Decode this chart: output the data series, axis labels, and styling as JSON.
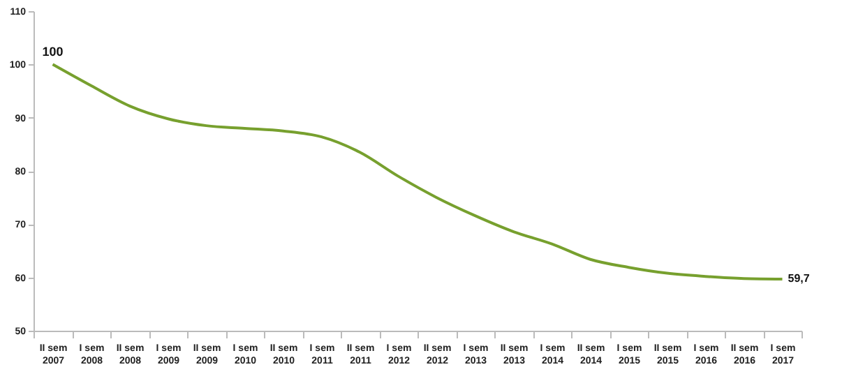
{
  "chart_data": {
    "type": "line",
    "categories": [
      "II sem 2007",
      "I sem 2008",
      "II sem 2008",
      "I sem 2009",
      "II sem 2009",
      "I sem 2010",
      "II sem 2010",
      "I sem 2011",
      "II sem 2011",
      "I sem 2012",
      "II sem 2012",
      "I sem 2013",
      "II sem 2013",
      "I sem 2014",
      "II sem 2014",
      "I sem 2015",
      "II sem 2015",
      "I sem 2016",
      "II sem 2016",
      "I sem 2017"
    ],
    "series": [
      {
        "color": "#77a02e",
        "values": [
          100,
          96,
          92.2,
          89.8,
          88.5,
          88.0,
          87.5,
          86.4,
          83.5,
          79,
          75,
          71.6,
          68.6,
          66.3,
          63.4,
          61.9,
          60.8,
          60.2,
          59.8,
          59.7
        ],
        "value_labels": [
          "100",
          null,
          null,
          null,
          null,
          null,
          null,
          null,
          null,
          null,
          null,
          null,
          null,
          null,
          null,
          null,
          null,
          null,
          null,
          "59,7"
        ]
      }
    ],
    "ylim": [
      50,
      110
    ],
    "yticks": [
      50,
      60,
      70,
      80,
      90,
      100,
      110
    ],
    "grid": false
  }
}
